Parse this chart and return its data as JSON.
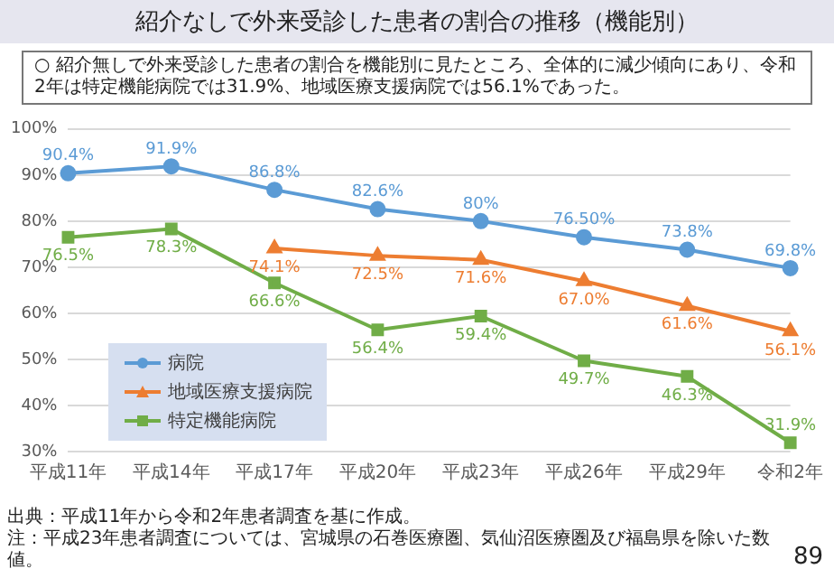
{
  "chart_data": {
    "type": "line",
    "title": "紹介なしで外来受診した患者の割合の推移（機能別）",
    "subtitle": "○  紹介無しで外来受診した患者の割合を機能別に見たところ、全体的に減少傾向にあり、令和2年は特定機能病院では31.9%、地域医療支援病院では56.1%であった。",
    "categories": [
      "平成11年",
      "平成14年",
      "平成17年",
      "平成20年",
      "平成23年",
      "平成26年",
      "平成29年",
      "令和2年"
    ],
    "series": [
      {
        "name": "病院",
        "color": "#5b9bd5",
        "marker": "circle",
        "values": [
          90.4,
          91.9,
          86.8,
          82.6,
          80,
          76.5,
          73.8,
          69.8
        ],
        "value_labels": [
          "90.4%",
          "91.9%",
          "86.8%",
          "82.6%",
          "80%",
          "76.50%",
          "73.8%",
          "69.8%"
        ]
      },
      {
        "name": "地域医療支援病院",
        "color": "#ed7d31",
        "marker": "triangle",
        "values": [
          null,
          null,
          74.1,
          72.5,
          71.6,
          67.0,
          61.6,
          56.1
        ],
        "value_labels": [
          null,
          null,
          "74.1%",
          "72.5%",
          "71.6%",
          "67.0%",
          "61.6%",
          "56.1%"
        ]
      },
      {
        "name": "特定機能病院",
        "color": "#70ad47",
        "marker": "square",
        "values": [
          76.5,
          78.3,
          66.6,
          56.4,
          59.4,
          49.7,
          46.3,
          31.9
        ],
        "value_labels": [
          "76.5%",
          "78.3%",
          "66.6%",
          "56.4%",
          "59.4%",
          "49.7%",
          "46.3%",
          "31.9%"
        ]
      }
    ],
    "ylim": [
      30,
      100
    ],
    "yticks": [
      {
        "value": 30,
        "label": "30%"
      },
      {
        "value": 40,
        "label": "40%"
      },
      {
        "value": 50,
        "label": "50%"
      },
      {
        "value": 60,
        "label": "60%"
      },
      {
        "value": 70,
        "label": "70%"
      },
      {
        "value": 80,
        "label": "80%"
      },
      {
        "value": 90,
        "label": "90%"
      },
      {
        "value": 100,
        "label": "100%"
      }
    ],
    "grid": "y",
    "legend": "bottom left",
    "annotations": [
      "出典：平成11年から令和2年患者調査を基に作成。",
      "注：平成23年患者調査については、宮城県の石巻医療圏、気仙沼医療圏及び福島県を除いた数値。",
      "89"
    ]
  }
}
